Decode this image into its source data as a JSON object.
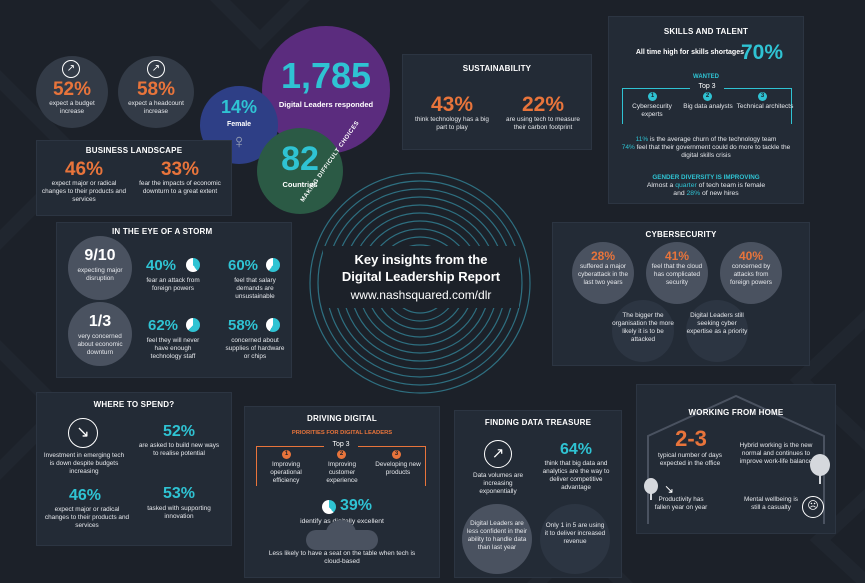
{
  "colors": {
    "bg": "#1c2129",
    "panel": "#232b36",
    "orange": "#e8743b",
    "cyan": "#2fc3d3",
    "purple": "#5b2c7e",
    "green": "#2b5a45",
    "blue": "#2e3f86",
    "grey": "#4a5260"
  },
  "top_left": {
    "budget": {
      "value": "52%",
      "text": "expect a budget increase"
    },
    "headcount": {
      "value": "58%",
      "text": "expect a headcount increase"
    }
  },
  "bubbles": {
    "responded": {
      "value": "1,785",
      "text": "Digital Leaders responded"
    },
    "female": {
      "value": "14%",
      "text": "Female"
    },
    "countries": {
      "value": "82",
      "text": "Countries"
    }
  },
  "business": {
    "title": "BUSINESS LANDSCAPE",
    "a": {
      "value": "46%",
      "text": "expect major or radical changes to their products and services"
    },
    "b": {
      "value": "33%",
      "text": "fear the impacts of economic downturn to a great extent"
    }
  },
  "storm": {
    "title": "IN THE EYE OF A STORM",
    "items": [
      {
        "value": "9/10",
        "text": "expecting major disruption"
      },
      {
        "value": "40%",
        "text": "fear an attack from foreign powers"
      },
      {
        "value": "60%",
        "text": "feel that salary demands are unsustainable"
      },
      {
        "value": "1/3",
        "text": "very concerned about economic downturn"
      },
      {
        "value": "62%",
        "text": "feel they will never have enough technology staff"
      },
      {
        "value": "58%",
        "text": "concerned about supplies of hardware or chips"
      }
    ]
  },
  "sustainability": {
    "title": "SUSTAINABILITY",
    "a": {
      "value": "43%",
      "text": "think technology has a big part to play"
    },
    "b": {
      "value": "22%",
      "text": "are using tech to measure their carbon footprint"
    }
  },
  "center": {
    "arc_text": "MAKING DIFFICULT CHOICES",
    "line1": "Key insights from the",
    "line2": "Digital Leadership Report",
    "url": "www.nashsquared.com/dlr"
  },
  "skills": {
    "title": "SKILLS AND TALENT",
    "high_text": "All time high for skills shortages",
    "high_value": "70%",
    "wanted": "WANTED",
    "top3": "Top 3",
    "items": [
      "Cybersecurity experts",
      "Big data analysts",
      "Technical architects"
    ],
    "churn_pct": "11%",
    "churn_text": "is the average churn of the technology team",
    "gov_pct": "74%",
    "gov_text": "feel that their government could do more to tackle the digital skills crisis",
    "diversity_title": "GENDER DIVERSITY IS IMPROVING",
    "div_pre": "Almost a ",
    "div_quarter": "quarter",
    "div_mid": " of tech team is female",
    "div_and": "and ",
    "div_pct": "28%",
    "div_post": " of new hires"
  },
  "cyber": {
    "title": "CYBERSECURITY",
    "items": [
      {
        "value": "28%",
        "text": "suffered a major cyberattack in the last two years"
      },
      {
        "value": "41%",
        "text": "feel that the cloud has complicated security"
      },
      {
        "value": "40%",
        "text": "concerned by attacks from foreign powers"
      }
    ],
    "note1": "The bigger the organisation the more likely it is to be attacked",
    "note2": "Digital Leaders still seeking cyber expertise as a priority"
  },
  "spend": {
    "title": "WHERE TO SPEND?",
    "a": {
      "text": "Investment in emerging tech is down despite budgets increasing"
    },
    "b": {
      "value": "52%",
      "text": "are asked to build new ways to realise potential"
    },
    "c": {
      "value": "46%",
      "text": "expect major or radical changes to their products and services"
    },
    "d": {
      "value": "53%",
      "text": "tasked with supporting innovation"
    }
  },
  "driving": {
    "title": "DRIVING DIGITAL",
    "sub": "PRIORITIES FOR DIGITAL LEADERS",
    "top3": "Top 3",
    "items": [
      "Improving operational efficiency",
      "Improving customer experience",
      "Developing new products"
    ],
    "pct": "39%",
    "pct_text": "identify as digitally excellent",
    "seat": "Less likely to have a seat on the table when tech is cloud-based"
  },
  "data": {
    "title": "FINDING DATA TREASURE",
    "a": {
      "text": "Data volumes are increasing exponentially"
    },
    "b": {
      "value": "64%",
      "text": "think that big data and analytics are the way to deliver competitive advantage"
    },
    "c": {
      "text": "Digital Leaders are less confident in their ability to handle data than last year"
    },
    "d": {
      "text": "Only 1 in 5 are using it to deliver increased revenue"
    }
  },
  "wfh": {
    "title": "WORKING FROM HOME",
    "value": "2-3",
    "text": "typical number of days expected in the office",
    "hybrid": "Hybrid working is the new normal and continues to improve work-life balance",
    "productivity": "Productivity has fallen year on year",
    "mental": "Mental wellbeing is still a casualty"
  }
}
